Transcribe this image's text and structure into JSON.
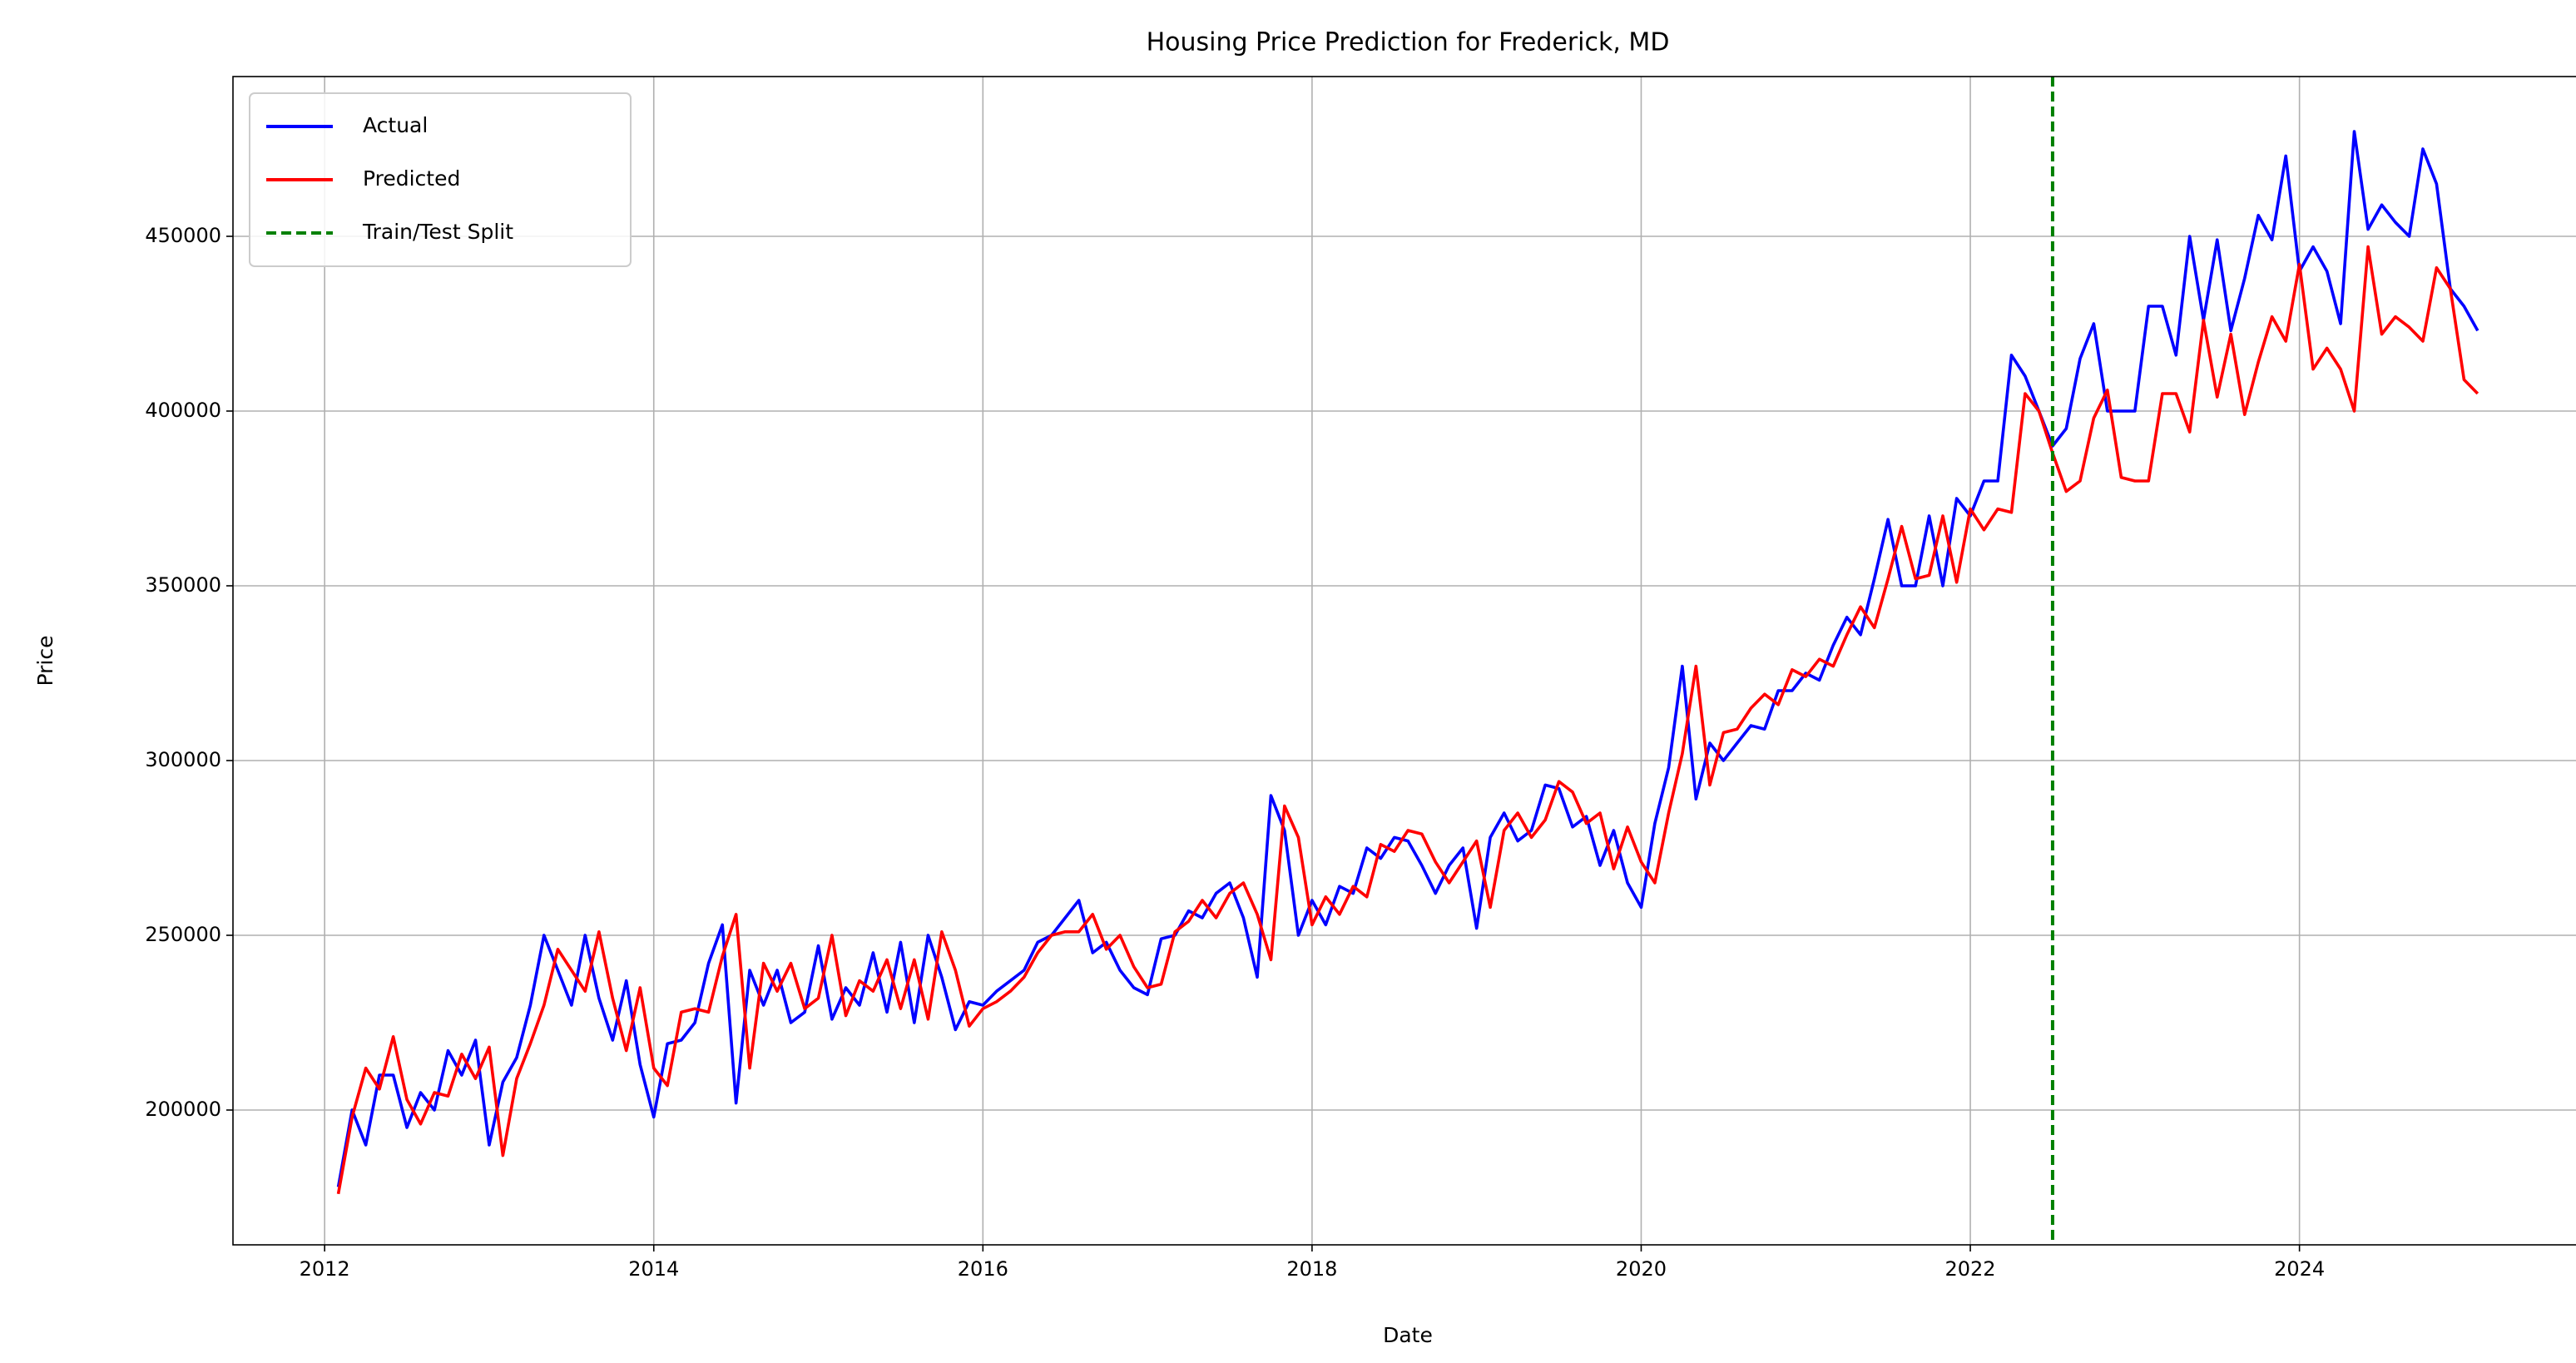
{
  "chart_data": {
    "type": "line",
    "title": "Housing Price Prediction for Frederick, MD",
    "x_label": "Date",
    "y_label": "Price",
    "x": [
      2012.083,
      2012.167,
      2012.25,
      2012.333,
      2012.417,
      2012.5,
      2012.583,
      2012.667,
      2012.75,
      2012.833,
      2012.917,
      2013,
      2013.083,
      2013.167,
      2013.25,
      2013.333,
      2013.417,
      2013.5,
      2013.583,
      2013.667,
      2013.75,
      2013.833,
      2013.917,
      2014,
      2014.083,
      2014.167,
      2014.25,
      2014.333,
      2014.417,
      2014.5,
      2014.583,
      2014.667,
      2014.75,
      2014.833,
      2014.917,
      2015,
      2015.083,
      2015.167,
      2015.25,
      2015.333,
      2015.417,
      2015.5,
      2015.583,
      2015.667,
      2015.75,
      2015.833,
      2015.917,
      2016,
      2016.083,
      2016.167,
      2016.25,
      2016.333,
      2016.417,
      2016.5,
      2016.583,
      2016.667,
      2016.75,
      2016.833,
      2016.917,
      2017,
      2017.083,
      2017.167,
      2017.25,
      2017.333,
      2017.417,
      2017.5,
      2017.583,
      2017.667,
      2017.75,
      2017.833,
      2017.917,
      2018,
      2018.083,
      2018.167,
      2018.25,
      2018.333,
      2018.417,
      2018.5,
      2018.583,
      2018.667,
      2018.75,
      2018.833,
      2018.917,
      2019,
      2019.083,
      2019.167,
      2019.25,
      2019.333,
      2019.417,
      2019.5,
      2019.583,
      2019.667,
      2019.75,
      2019.833,
      2019.917,
      2020,
      2020.083,
      2020.167,
      2020.25,
      2020.333,
      2020.417,
      2020.5,
      2020.583,
      2020.667,
      2020.75,
      2020.833,
      2020.917,
      2021,
      2021.083,
      2021.167,
      2021.25,
      2021.333,
      2021.417,
      2021.5,
      2021.583,
      2021.667,
      2021.75,
      2021.833,
      2021.917,
      2022,
      2022.083,
      2022.167,
      2022.25,
      2022.333,
      2022.417,
      2022.5,
      2022.583,
      2022.667,
      2022.75,
      2022.833,
      2022.917,
      2023,
      2023.083,
      2023.167,
      2023.25,
      2023.333,
      2023.417,
      2023.5,
      2023.583,
      2023.667,
      2023.75,
      2023.833,
      2023.917,
      2024,
      2024.083,
      2024.167,
      2024.25,
      2024.333,
      2024.417,
      2024.5,
      2024.583,
      2024.667,
      2024.75,
      2024.833,
      2024.917,
      2025,
      2025.083
    ],
    "series": [
      {
        "name": "Actual",
        "color": "#0000ff",
        "values": [
          178000,
          200000,
          190000,
          210000,
          210000,
          195000,
          205000,
          200000,
          217000,
          210000,
          220000,
          190000,
          208000,
          215000,
          230000,
          250000,
          240000,
          230000,
          250000,
          232000,
          220000,
          237000,
          213000,
          198000,
          219000,
          220000,
          225000,
          242000,
          253000,
          202000,
          240000,
          230000,
          240000,
          225000,
          228000,
          247000,
          226000,
          235000,
          230000,
          245000,
          228000,
          248000,
          225000,
          250000,
          238000,
          223000,
          231000,
          230000,
          234000,
          237000,
          240000,
          248000,
          250000,
          255000,
          260000,
          245000,
          248000,
          240000,
          235000,
          233000,
          249000,
          250000,
          257000,
          255000,
          262000,
          265000,
          255000,
          238000,
          290000,
          280000,
          250000,
          260000,
          253000,
          264000,
          262000,
          275000,
          272000,
          278000,
          277000,
          270000,
          262000,
          270000,
          275000,
          252000,
          278000,
          285000,
          277000,
          280000,
          293000,
          292000,
          281000,
          284000,
          270000,
          280000,
          265000,
          258000,
          282000,
          298000,
          327000,
          289000,
          305000,
          300000,
          305000,
          310000,
          309000,
          320000,
          320000,
          325000,
          323000,
          333000,
          341000,
          336000,
          352000,
          369000,
          350000,
          350000,
          370000,
          350000,
          375000,
          370000,
          380000,
          380000,
          416000,
          410000,
          400000,
          390000,
          395000,
          415000,
          425000,
          400000,
          400000,
          400000,
          430000,
          430000,
          416000,
          450000,
          426000,
          449000,
          423000,
          438000,
          456000,
          449000,
          473000,
          440000,
          447000,
          440000,
          425000,
          480000,
          452000,
          459000,
          454000,
          450000,
          475000,
          465000,
          435000,
          430000,
          423000
        ]
      },
      {
        "name": "Predicted",
        "color": "#ff0000",
        "values": [
          176000,
          198000,
          212000,
          206000,
          221000,
          203000,
          196000,
          205000,
          204000,
          216000,
          209000,
          218000,
          187000,
          209000,
          219000,
          230000,
          246000,
          240000,
          234000,
          251000,
          232000,
          217000,
          235000,
          212000,
          207000,
          228000,
          229000,
          228000,
          244000,
          256000,
          212000,
          242000,
          234000,
          242000,
          229000,
          232000,
          250000,
          227000,
          237000,
          234000,
          243000,
          229000,
          243000,
          226000,
          251000,
          240000,
          224000,
          229000,
          231000,
          234000,
          238000,
          245000,
          250000,
          251000,
          251000,
          256000,
          246000,
          250000,
          241000,
          235000,
          236000,
          251000,
          254000,
          260000,
          255000,
          262000,
          265000,
          256000,
          243000,
          287000,
          278000,
          253000,
          261000,
          256000,
          264000,
          261000,
          276000,
          274000,
          280000,
          279000,
          271000,
          265000,
          271000,
          277000,
          258000,
          280000,
          285000,
          278000,
          283000,
          294000,
          291000,
          282000,
          285000,
          269000,
          281000,
          271000,
          265000,
          285000,
          302000,
          327000,
          293000,
          308000,
          309000,
          315000,
          319000,
          316000,
          326000,
          324000,
          329000,
          327000,
          336000,
          344000,
          338000,
          352000,
          367000,
          352000,
          353000,
          370000,
          351000,
          372000,
          366000,
          372000,
          371000,
          405000,
          400000,
          388000,
          377000,
          380000,
          398000,
          406000,
          381000,
          380000,
          380000,
          405000,
          405000,
          394000,
          426000,
          404000,
          422000,
          399000,
          414000,
          427000,
          420000,
          442000,
          412000,
          418000,
          412000,
          400000,
          447000,
          422000,
          427000,
          424000,
          420000,
          441000,
          435000,
          409000,
          405000
        ]
      }
    ],
    "split": {
      "name": "Train/Test Split",
      "color": "#008000",
      "x": 2022.5
    },
    "xlim": [
      2011.443,
      2025.731
    ],
    "xticks": [
      2012,
      2014,
      2016,
      2018,
      2020,
      2022,
      2024
    ],
    "ylim": [
      161429,
      495714
    ],
    "yticks": [
      200000,
      250000,
      300000,
      350000,
      400000,
      450000
    ],
    "grid": true,
    "legend": "upper left"
  }
}
